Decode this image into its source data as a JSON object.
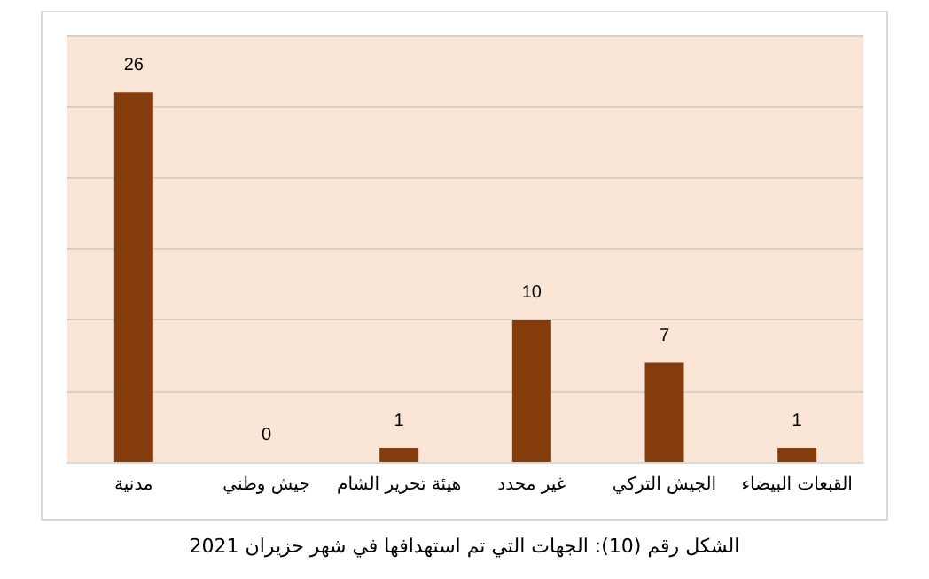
{
  "chart_data": {
    "type": "bar",
    "categories": [
      "مدنية",
      "جيش وطني",
      "هيئة تحرير الشام",
      "غير محدد",
      "الجيش التركي",
      "القبعات البيضاء"
    ],
    "values": [
      26,
      0,
      1,
      10,
      7,
      1
    ],
    "color": "#843c0c",
    "ylim": [
      0,
      30
    ],
    "yticks": [
      0,
      5,
      10,
      15,
      20,
      25,
      30
    ],
    "grid": "y",
    "tick_labels": "x",
    "data_labels": true,
    "annotations": [
      "الشكل رقم (10): الجهات التي تم استهدافها في شهر حزيران 2021"
    ]
  }
}
